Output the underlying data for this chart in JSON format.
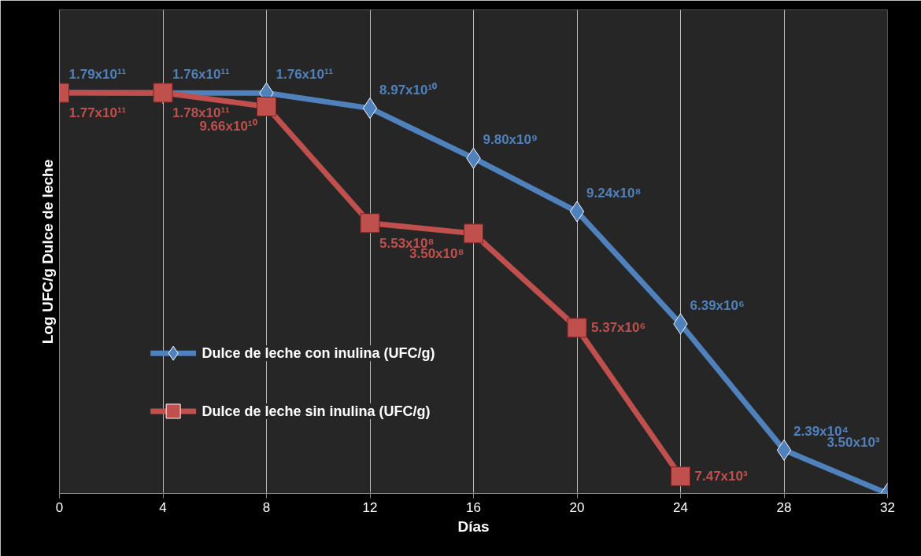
{
  "chart_data": {
    "type": "line",
    "xlabel": "Días",
    "ylabel": "Log UFC/g Dulce de leche",
    "log": "y",
    "xlim": [
      0,
      32
    ],
    "xticks": [
      0,
      4,
      8,
      12,
      16,
      20,
      24,
      28,
      32
    ],
    "ylim": [
      3500,
      7000000000000
    ],
    "tick_labels": "x",
    "grid": "x",
    "legend": "left",
    "line_style": "solid",
    "series": [
      {
        "name": "Dulce de leche con inulina (UFC/g)",
        "color": "#4f81bd",
        "marker": "diamond",
        "x": [
          0,
          4,
          8,
          12,
          16,
          20,
          24,
          28,
          32
        ],
        "values": [
          179000000000,
          176000000000,
          176000000000,
          89700000000,
          9800000000,
          924000000,
          6390000,
          23900,
          3500
        ],
        "value_labels": [
          "1.79x10¹¹",
          "1.76x10¹¹",
          "1.76x10¹¹",
          "8.97x10¹⁰",
          "9.80x10⁹",
          "9.24x10⁸",
          "6.39x10⁶",
          "2.39x10⁴",
          "3.50x10³"
        ]
      },
      {
        "name": "Dulce de leche sin inulina (UFC/g)",
        "color": "#c0504d",
        "marker": "square",
        "x": [
          0,
          4,
          8,
          12,
          16,
          20,
          24
        ],
        "values": [
          177000000000,
          178000000000,
          96600000000,
          553000000,
          350000000,
          5370000,
          7470
        ],
        "value_labels": [
          "1.77x10¹¹",
          "1.78x10¹¹",
          "9.66x10¹⁰",
          "5.53x10⁸",
          "3.50x10⁸",
          "5.37x10⁶",
          "7.47x10³"
        ]
      }
    ]
  }
}
